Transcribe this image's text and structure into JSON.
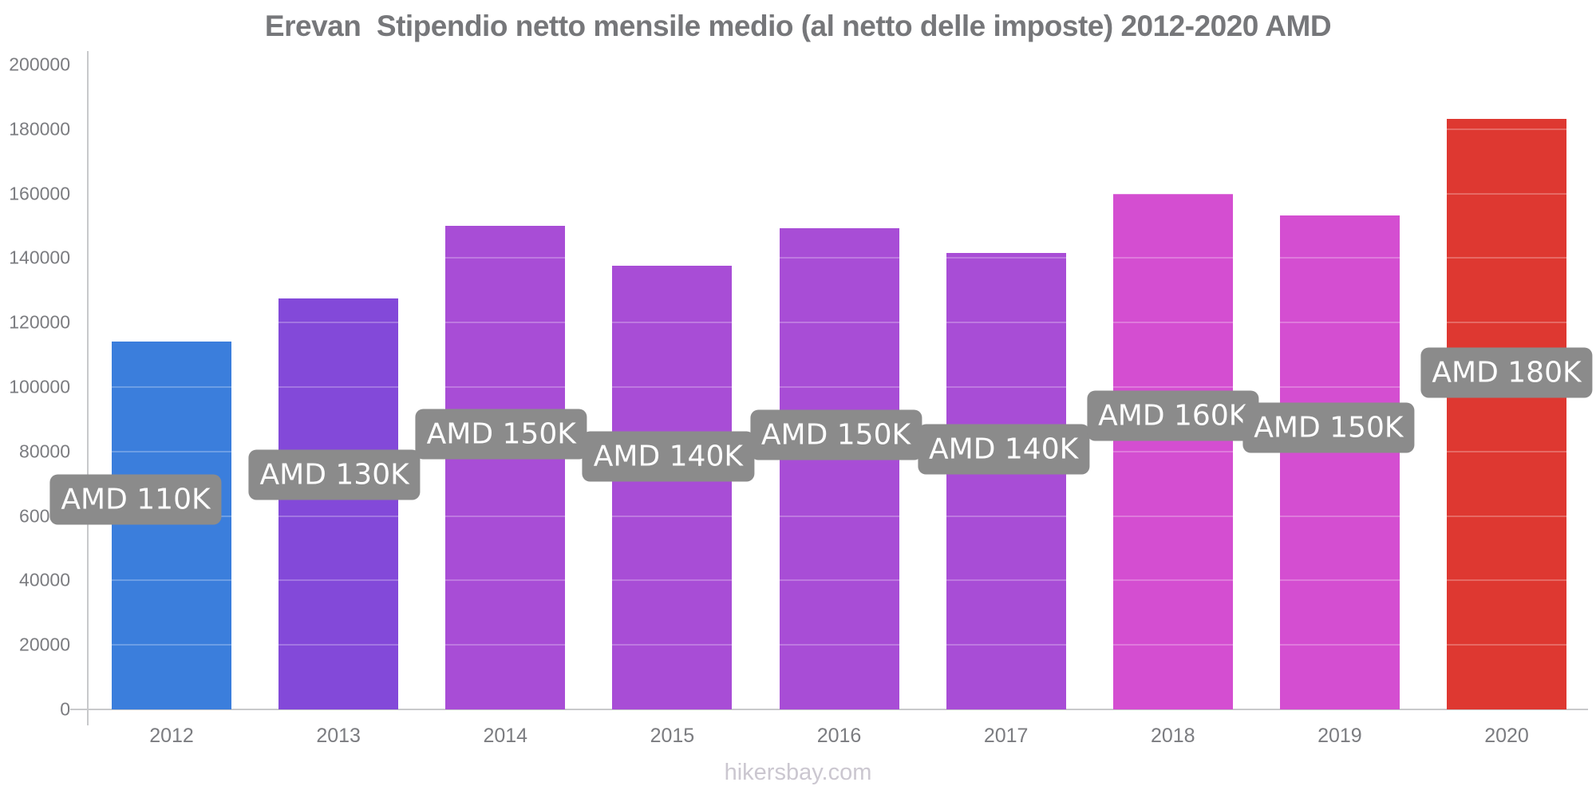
{
  "title": "Erevan  Stipendio netto mensile medio (al netto delle imposte) 2012-2020 AMD",
  "footer": "hikersbay.com",
  "colors": {
    "background": "#ffffff",
    "title_text": "#76777a",
    "axis_label_text": "#7b7c80",
    "axis_line": "#c8c9cb",
    "value_chip_bg": "#8b8b8b",
    "value_chip_text": "#ffffff",
    "watermark_text": "#cbc7d0"
  },
  "chart_data": {
    "type": "bar",
    "title": "Erevan Stipendio netto mensile medio (al netto delle imposte) 2012-2020 AMD",
    "xlabel": "",
    "ylabel": "",
    "ylim": [
      0,
      200000
    ],
    "ytick_step": 20000,
    "ytick_labels": [
      "0",
      "20000",
      "40000",
      "60000",
      "80000",
      "100000",
      "120000",
      "140000",
      "160000",
      "180000",
      "200000"
    ],
    "grid": "faint white gridlines drawn over bars only",
    "legend": false,
    "currency": "AMD",
    "categories": [
      "2012",
      "2013",
      "2014",
      "2015",
      "2016",
      "2017",
      "2018",
      "2019",
      "2020"
    ],
    "values": [
      114000,
      127500,
      150000,
      137600,
      149300,
      141700,
      160000,
      153200,
      183200
    ],
    "bar_labels": [
      "AMD 110K",
      "AMD 130K",
      "AMD 150K",
      "AMD 140K",
      "AMD 150K",
      "AMD 140K",
      "AMD 160K",
      "AMD 150K",
      "AMD 180K"
    ],
    "bar_colors": [
      "#3b7edc",
      "#8349d9",
      "#a84dd6",
      "#a84dd6",
      "#a84dd6",
      "#a84dd6",
      "#d44ed1",
      "#d44ed1",
      "#de3831"
    ],
    "label_x_offsets": [
      -45,
      -5,
      -5,
      -5,
      -4,
      -3,
      0,
      -14,
      0
    ],
    "label_y_factor": 0.43
  }
}
